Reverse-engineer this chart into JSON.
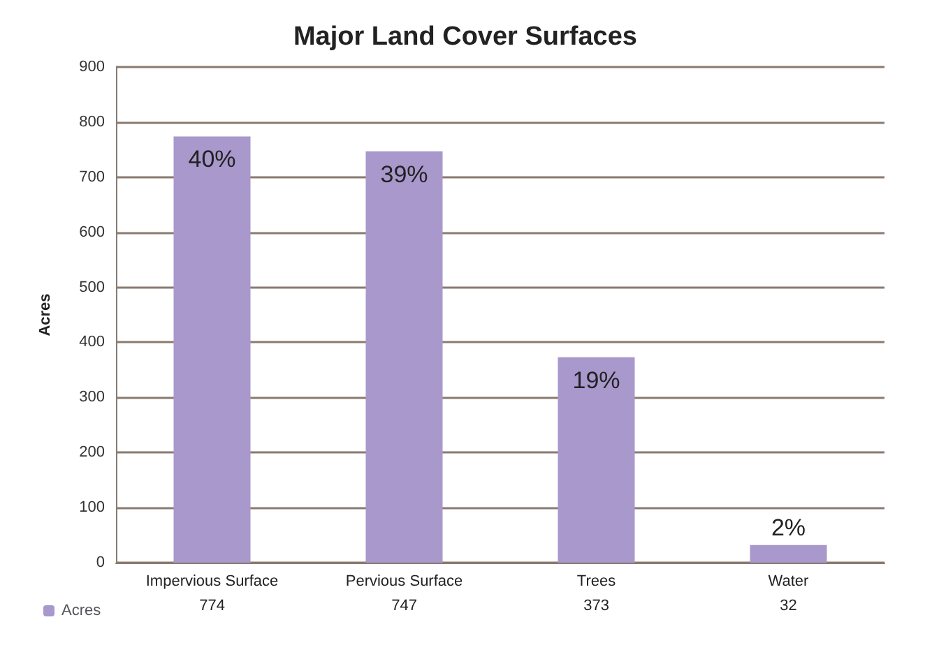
{
  "chart_data": {
    "type": "bar",
    "title": "Major Land Cover Surfaces",
    "ylabel": "Acres",
    "categories": [
      "Impervious Surface",
      "Pervious Surface",
      "Trees",
      "Water"
    ],
    "series": [
      {
        "name": "Acres",
        "color": "#a898cc",
        "values": [
          774,
          747,
          373,
          32
        ]
      }
    ],
    "annotations": [
      {
        "text": "40%",
        "x": "Impervious Surface",
        "y": 774
      },
      {
        "text": "39%",
        "x": "Pervious Surface",
        "y": 747
      },
      {
        "text": "19%",
        "x": "Trees",
        "y": 373
      },
      {
        "text": "2%",
        "x": "Water",
        "y": 32
      }
    ],
    "ylim": [
      0,
      900
    ],
    "yticks": [
      0,
      100,
      200,
      300,
      400,
      500,
      600,
      700,
      800,
      900
    ],
    "grid": "y",
    "legend": "bottom left",
    "data_labels": true
  }
}
